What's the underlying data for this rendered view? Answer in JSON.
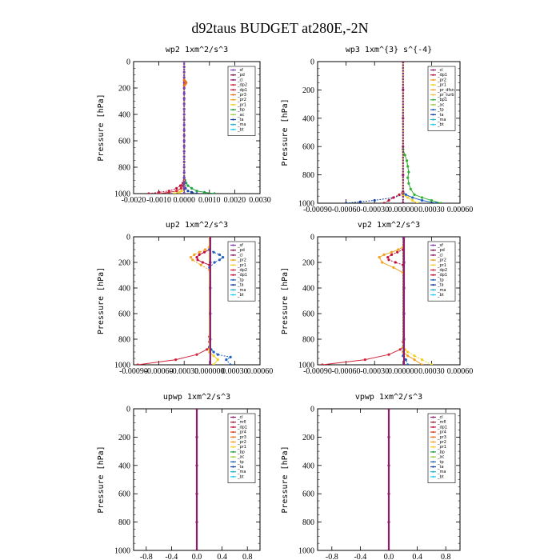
{
  "figure": {
    "title": "d92taus  BUDGET at280E,-2N"
  },
  "palette": {
    "_sf": "#7a3fb0",
    "_pd": "#7a1a4a",
    "_cl": "#8c1d6b",
    "_dp1": "#c0103a",
    "_dp2": "#d2243a",
    "_dp4": "#c0103a",
    "_pr1": "#f0d020",
    "_pr2": "#f2a020",
    "_pr3": "#e87020",
    "_pr4": "#d84020",
    "_pr_dfsn": "#f0a030",
    "_pr_turb": "#f0c040",
    "_bp": "#20a040",
    "_bp1": "#30b030",
    "_ac": "#a0d040",
    "_tp": "#2060c0",
    "_ta": "#1040a0",
    "_ma": "#20b0d0",
    "_bt": "#20d0f0",
    "_mfl": "#9a2040"
  },
  "chart_data": [
    {
      "type": "line",
      "title": "wp2   1xm^2/s^3",
      "ylabel": "Pressure [hPa]",
      "xlim": [
        -0.002,
        0.003
      ],
      "ylim": [
        1000,
        0
      ],
      "xticks": [
        -0.002,
        -0.001,
        0.0,
        0.001,
        0.002,
        0.003
      ],
      "xtick_labels": [
        "-0.0020",
        "-0.0010",
        "0.0000",
        "0.0010",
        "0.0020",
        "0.0030"
      ],
      "yticks": [
        0,
        200,
        400,
        600,
        800,
        1000
      ],
      "ytick_labels": [
        "0",
        "200",
        "400",
        "600",
        "800",
        "1000"
      ],
      "legend": [
        "_sf",
        "_pd",
        "_cl",
        "_dp2",
        "_dp1",
        "_pr3",
        "_pr2",
        "_pr1",
        "_bp",
        "_ac",
        "_ta",
        "_ma",
        "_bt"
      ],
      "legend_position": "top-right",
      "series": [
        {
          "name": "_bp",
          "y": [
            1000,
            990,
            980,
            960,
            940,
            920,
            900,
            880,
            0
          ],
          "x": [
            0.0012,
            0.0008,
            0.0005,
            0.0003,
            0.00015,
            8e-05,
            3e-05,
            0.0,
            0.0
          ]
        },
        {
          "name": "_dp1",
          "y": [
            1000,
            990,
            980,
            960,
            940,
            920,
            900,
            0
          ],
          "x": [
            -0.0014,
            -0.001,
            -0.0006,
            -0.0003,
            -0.00015,
            -5e-05,
            0.0,
            0.0
          ]
        },
        {
          "name": "_dp2",
          "y": [
            1000,
            990,
            980,
            960,
            940,
            920,
            0
          ],
          "x": [
            -0.001,
            -0.0006,
            -0.0003,
            -0.00012,
            -5e-05,
            0.0,
            0.0
          ]
        },
        {
          "name": "_ta",
          "y": [
            1000,
            990,
            980,
            960,
            940,
            0
          ],
          "x": [
            0.0005,
            0.0003,
            0.00015,
            5e-05,
            0.0,
            0.0
          ]
        },
        {
          "name": "_pr1",
          "y": [
            1000,
            990,
            980,
            960,
            0
          ],
          "x": [
            -0.0004,
            -0.0002,
            -0.0001,
            0.0,
            0.0
          ]
        },
        {
          "name": "_sf",
          "y": [
            1000,
            960,
            920,
            880,
            840,
            800,
            760,
            720,
            680,
            640,
            600,
            560,
            520,
            480,
            440,
            400,
            360,
            320,
            280,
            240,
            200,
            160,
            120,
            80,
            40,
            0
          ],
          "x": [
            0,
            0,
            0,
            0,
            0,
            0,
            0,
            0,
            0,
            0,
            0,
            0,
            0,
            0,
            0,
            0,
            0,
            0,
            0,
            0,
            0,
            0,
            0,
            0,
            0,
            0
          ]
        },
        {
          "name": "_pr3",
          "y": [
            180,
            170,
            160,
            150,
            140
          ],
          "x": [
            0.0,
            5e-05,
            8e-05,
            5e-05,
            0.0
          ]
        }
      ]
    },
    {
      "type": "line",
      "title": "wp3   1xm^{3} s^{-4}",
      "ylabel": "Pressure [hPa]",
      "xlim": [
        -0.0009,
        0.0006
      ],
      "ylim": [
        1000,
        0
      ],
      "xticks": [
        -0.0009,
        -0.0006,
        -0.0003,
        0.0,
        0.0003,
        0.0006
      ],
      "xtick_labels": [
        "-0.00090",
        "-0.00060",
        "-0.00030",
        "0.000000",
        "0.00030",
        "0.00060"
      ],
      "yticks": [
        0,
        200,
        400,
        600,
        800,
        1000
      ],
      "ytick_labels": [
        "0",
        "200",
        "400",
        "600",
        "800",
        "1000"
      ],
      "legend": [
        "_cl",
        "_dp1",
        "_pr2",
        "_pr1",
        "_pr_dfsn",
        "_pr_turb",
        "_bp1",
        "_ac",
        "_tp",
        "_ta",
        "_ma",
        "_bt"
      ],
      "legend_position": "top-right",
      "series": [
        {
          "name": "_bp1",
          "y": [
            1000,
            980,
            960,
            940,
            900,
            860,
            820,
            780,
            740,
            700,
            660,
            620,
            0
          ],
          "x": [
            0.0004,
            0.0003,
            0.0002,
            0.00012,
            8e-05,
            6e-05,
            5e-05,
            6e-05,
            5e-05,
            4e-05,
            2e-05,
            0.0,
            0.0
          ]
        },
        {
          "name": "_ta",
          "y": [
            1000,
            990,
            980,
            960,
            940,
            920,
            0
          ],
          "x": [
            -0.0006,
            -0.00045,
            -0.0003,
            -0.0001,
            0.0,
            0.0,
            0.0
          ]
        },
        {
          "name": "_tp",
          "y": [
            1000,
            980,
            960,
            940,
            920,
            0
          ],
          "x": [
            0.00035,
            0.0002,
            0.0001,
            3e-05,
            0.0,
            0.0
          ]
        },
        {
          "name": "_dp1",
          "y": [
            1000,
            980,
            960,
            940,
            920,
            0
          ],
          "x": [
            -0.0002,
            -0.00015,
            -0.0001,
            -4e-05,
            0.0,
            0.0
          ]
        },
        {
          "name": "_pr1",
          "y": [
            1000,
            980,
            960,
            940,
            0
          ],
          "x": [
            0.00015,
            0.0001,
            5e-05,
            0.0,
            0.0
          ]
        },
        {
          "name": "_cl",
          "y": [
            1000,
            800,
            600,
            400,
            200,
            0
          ],
          "x": [
            0,
            0,
            0,
            0,
            0,
            0
          ]
        }
      ]
    },
    {
      "type": "line",
      "title": "up2   1xm^2/s^3",
      "ylabel": "Pressure [hPa]",
      "xlim": [
        -0.0009,
        0.0006
      ],
      "ylim": [
        1000,
        0
      ],
      "xticks": [
        -0.0009,
        -0.0006,
        -0.0003,
        0.0,
        0.0003,
        0.0006
      ],
      "xtick_labels": [
        "-0.00090",
        "-0.00060",
        "-0.00030",
        "0.000000",
        "0.00030",
        "0.00060"
      ],
      "yticks": [
        0,
        200,
        400,
        600,
        800,
        1000
      ],
      "ytick_labels": [
        "0",
        "200",
        "400",
        "600",
        "800",
        "1000"
      ],
      "legend": [
        "_sf",
        "_pd",
        "_cl",
        "_pr2",
        "_pr1",
        "_dp2",
        "_dp1",
        "_tp",
        "_ta",
        "_ma",
        "_bt"
      ],
      "legend_position": "top-right",
      "series": [
        {
          "name": "_dp2",
          "y": [
            1000,
            960,
            920,
            880,
            860,
            820,
            780,
            0
          ],
          "x": [
            -0.00085,
            -0.0004,
            -0.00015,
            -3e-05,
            0.0,
            0.0,
            0.0,
            0.0
          ]
        },
        {
          "name": "_tp",
          "y": [
            1000,
            960,
            940,
            920,
            900,
            880,
            860,
            0
          ],
          "x": [
            0.00025,
            0.0002,
            0.00025,
            0.0001,
            5e-05,
            2e-05,
            0.0,
            0.0
          ]
        },
        {
          "name": "_pr1",
          "y": [
            1000,
            960,
            930,
            900,
            880,
            0
          ],
          "x": [
            5e-05,
            0.0001,
            5e-05,
            0.0,
            0.0,
            0.0
          ]
        },
        {
          "name": "_pr2",
          "y": [
            260,
            220,
            180,
            160,
            140,
            120,
            100,
            80
          ],
          "x": [
            0.0,
            -0.0001,
            -0.0002,
            -0.00022,
            -0.00018,
            -0.00012,
            -5e-05,
            0.0
          ]
        },
        {
          "name": "_dp1",
          "y": [
            220,
            200,
            180,
            160,
            140,
            120,
            100
          ],
          "x": [
            0.0,
            -8e-05,
            -0.00014,
            -0.00015,
            -0.00012,
            -6e-05,
            0.0
          ]
        },
        {
          "name": "_tp",
          "y": [
            240,
            200,
            180,
            160,
            140,
            120,
            100
          ],
          "x": [
            0.0,
            6e-05,
            0.00012,
            0.00016,
            0.00012,
            5e-05,
            0.0
          ]
        },
        {
          "name": "_cl",
          "y": [
            1000,
            800,
            600,
            400,
            200,
            0
          ],
          "x": [
            1e-05,
            1e-05,
            1e-05,
            1e-05,
            1e-05,
            1e-05
          ]
        }
      ]
    },
    {
      "type": "line",
      "title": "vp2   1xm^2/s^3",
      "ylabel": "Pressure [hPa]",
      "xlim": [
        -0.0009,
        0.0006
      ],
      "ylim": [
        1000,
        0
      ],
      "xticks": [
        -0.0009,
        -0.0006,
        -0.0003,
        0.0,
        0.0003,
        0.0006
      ],
      "xtick_labels": [
        "-0.00090",
        "-0.00060",
        "-0.00030",
        "0.000000",
        "0.00030",
        "0.00060"
      ],
      "yticks": [
        0,
        200,
        400,
        600,
        800,
        1000
      ],
      "ytick_labels": [
        "0",
        "200",
        "400",
        "600",
        "800",
        "1000"
      ],
      "legend": [
        "_sf",
        "_pd",
        "_cl",
        "_pr2",
        "_pr1",
        "_dp2",
        "_dp1",
        "_tp",
        "_ta",
        "_ma",
        "_bt"
      ],
      "legend_position": "top-right",
      "series": [
        {
          "name": "_dp2",
          "y": [
            1000,
            960,
            920,
            880,
            860,
            820,
            0
          ],
          "x": [
            -0.00085,
            -0.0004,
            -0.00015,
            -3e-05,
            0.0,
            0.0,
            0.0
          ]
        },
        {
          "name": "_pr1",
          "y": [
            1000,
            960,
            930,
            900,
            880,
            860,
            0
          ],
          "x": [
            0.0003,
            0.0002,
            0.00012,
            5e-05,
            2e-05,
            0.0,
            0.0
          ]
        },
        {
          "name": "_pr2",
          "y": [
            1000,
            960,
            930,
            900,
            0
          ],
          "x": [
            0.0002,
            0.00012,
            5e-05,
            0.0,
            0.0
          ]
        },
        {
          "name": "_tp",
          "y": [
            1000,
            960,
            930,
            0
          ],
          "x": [
            5e-05,
            3e-05,
            0.0,
            0.0
          ]
        },
        {
          "name": "_pr2",
          "y": [
            280,
            240,
            200,
            160,
            140,
            120,
            100,
            80
          ],
          "x": [
            0.0,
            -0.0001,
            -0.00022,
            -0.00025,
            -0.0002,
            -0.00012,
            -5e-05,
            0.0
          ]
        },
        {
          "name": "_dp1",
          "y": [
            220,
            200,
            180,
            160,
            140,
            120,
            100
          ],
          "x": [
            0.0,
            -8e-05,
            -0.00015,
            -0.00016,
            -0.00012,
            -6e-05,
            0.0
          ]
        },
        {
          "name": "_cl",
          "y": [
            1000,
            800,
            600,
            400,
            200,
            0
          ],
          "x": [
            1e-05,
            1e-05,
            1e-05,
            1e-05,
            1e-05,
            1e-05
          ]
        }
      ]
    },
    {
      "type": "line",
      "title": "upwp   1xm^2/s^3",
      "ylabel": "Pressure [hPa]",
      "xlim": [
        -1.0,
        1.0
      ],
      "ylim": [
        1000,
        0
      ],
      "xticks": [
        -0.8,
        -0.4,
        0.0,
        0.4,
        0.8
      ],
      "xtick_labels": [
        "-0.8",
        "-0.4",
        "0.0",
        "0.4",
        "0.8"
      ],
      "yticks": [
        0,
        200,
        400,
        600,
        800,
        1000
      ],
      "ytick_labels": [
        "0",
        "200",
        "400",
        "600",
        "800",
        "1000"
      ],
      "legend": [
        "_cl",
        "_mfl",
        "_dp1",
        "_pr4",
        "_pr3",
        "_pr2",
        "_pr1",
        "_bp",
        "_ac",
        "_tp",
        "_ta",
        "_ma",
        "_bt"
      ],
      "legend_position": "top-right",
      "series": [
        {
          "name": "_cl",
          "y": [
            1000,
            800,
            600,
            400,
            200,
            0
          ],
          "x": [
            0,
            0,
            0,
            0,
            0,
            0
          ]
        }
      ]
    },
    {
      "type": "line",
      "title": "vpwp   1xm^2/s^3",
      "ylabel": "Pressure [hPa]",
      "xlim": [
        -1.0,
        1.0
      ],
      "ylim": [
        1000,
        0
      ],
      "xticks": [
        -0.8,
        -0.4,
        0.0,
        0.4,
        0.8
      ],
      "xtick_labels": [
        "-0.8",
        "-0.4",
        "0.0",
        "0.4",
        "0.8"
      ],
      "yticks": [
        0,
        200,
        400,
        600,
        800,
        1000
      ],
      "ytick_labels": [
        "0",
        "200",
        "400",
        "600",
        "800",
        "1000"
      ],
      "legend": [
        "_cl",
        "_mfl",
        "_dp1",
        "_pr4",
        "_pr3",
        "_pr2",
        "_pr1",
        "_bp",
        "_ac",
        "_tp",
        "_ta",
        "_ma",
        "_bt"
      ],
      "legend_position": "top-right",
      "series": [
        {
          "name": "_cl",
          "y": [
            1000,
            800,
            600,
            400,
            200,
            0
          ],
          "x": [
            0,
            0,
            0,
            0,
            0,
            0
          ]
        }
      ]
    }
  ]
}
